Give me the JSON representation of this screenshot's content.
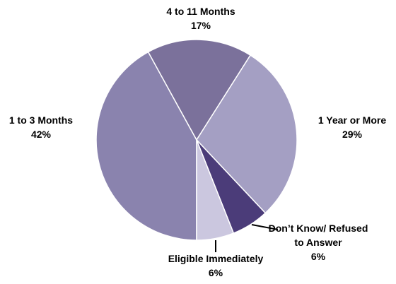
{
  "chart_data": {
    "type": "pie",
    "categories": [
      "1 to 3 Months",
      "4 to 11 Months",
      "1 Year or More",
      "Don’t Know/ Refused to Answer",
      "Eligible Immediately"
    ],
    "values": [
      42,
      17,
      29,
      6,
      6
    ],
    "value_labels": [
      "42%",
      "17%",
      "29%",
      "6%",
      "6%"
    ],
    "colors": [
      "#8a83ae",
      "#7b719b",
      "#a49fc3",
      "#4b3c79",
      "#cbc7df"
    ]
  }
}
